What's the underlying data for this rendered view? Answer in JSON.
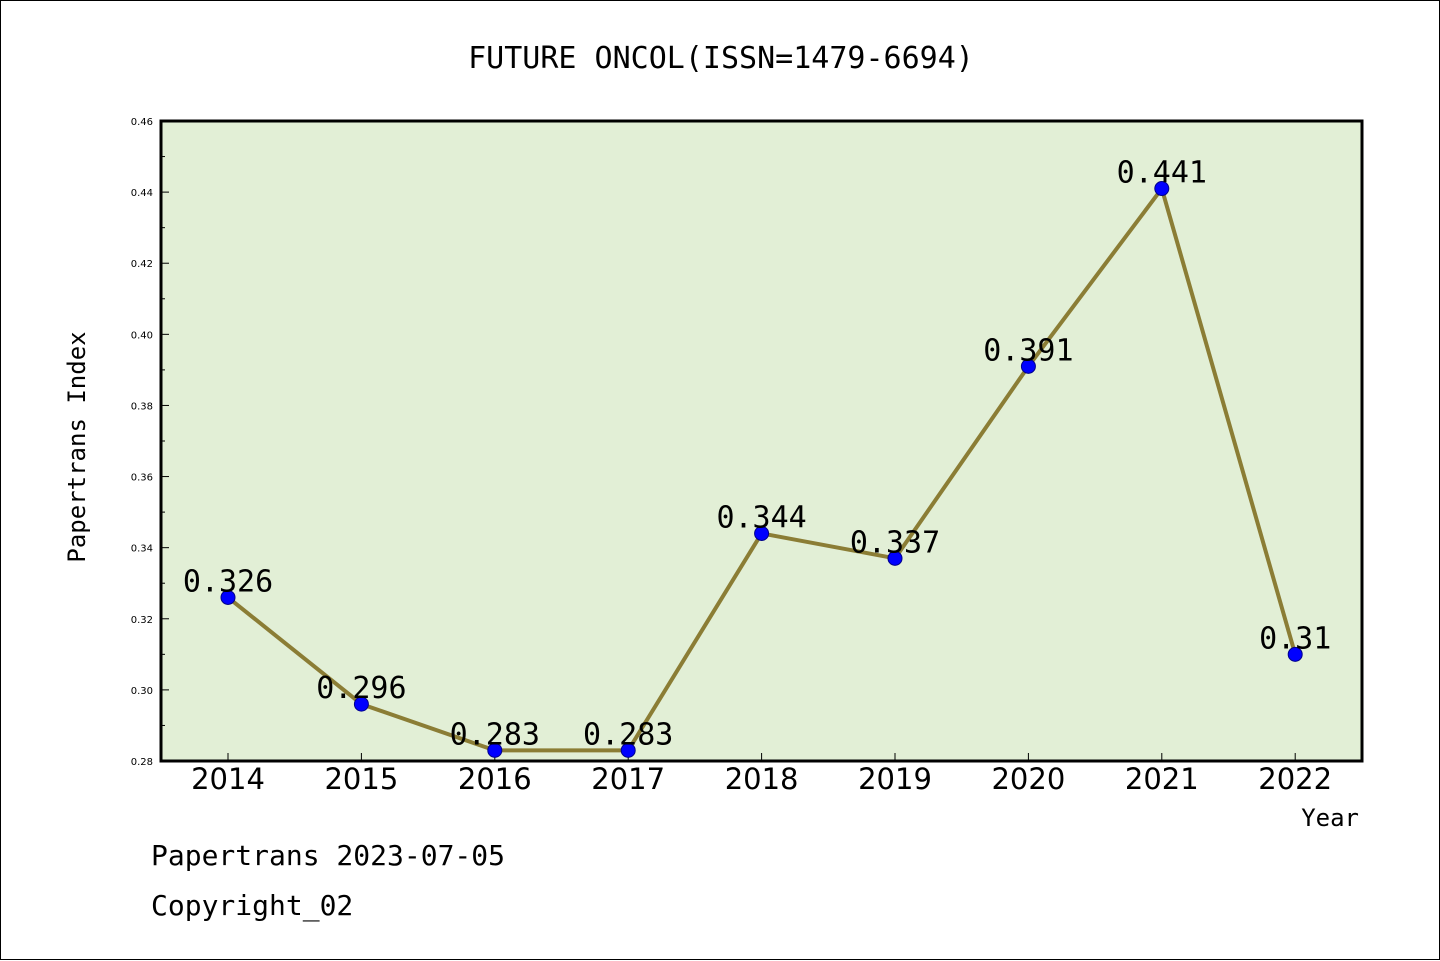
{
  "chart_data": {
    "type": "line",
    "title": "FUTURE ONCOL(ISSN=1479-6694)",
    "xlabel": "Year",
    "ylabel": "Papertrans Index",
    "categories": [
      "2014",
      "2015",
      "2016",
      "2017",
      "2018",
      "2019",
      "2020",
      "2021",
      "2022"
    ],
    "values": [
      0.326,
      0.296,
      0.283,
      0.283,
      0.344,
      0.337,
      0.391,
      0.441,
      0.31
    ],
    "data_labels": [
      "0.326",
      "0.296",
      "0.283",
      "0.283",
      "0.344",
      "0.337",
      "0.391",
      "0.441",
      "0.31"
    ],
    "ylim": [
      0.28,
      0.46
    ],
    "yticks": [
      "0.28",
      "0.30",
      "0.32",
      "0.34",
      "0.36",
      "0.38",
      "0.40",
      "0.42",
      "0.44",
      "0.46"
    ],
    "grid": false,
    "colors": {
      "plot_background": "#e2efd6",
      "line": "#8b7d35",
      "marker": "#0000ff"
    }
  },
  "footer": {
    "line1": "Papertrans 2023-07-05",
    "line2": "Copyright_02"
  }
}
